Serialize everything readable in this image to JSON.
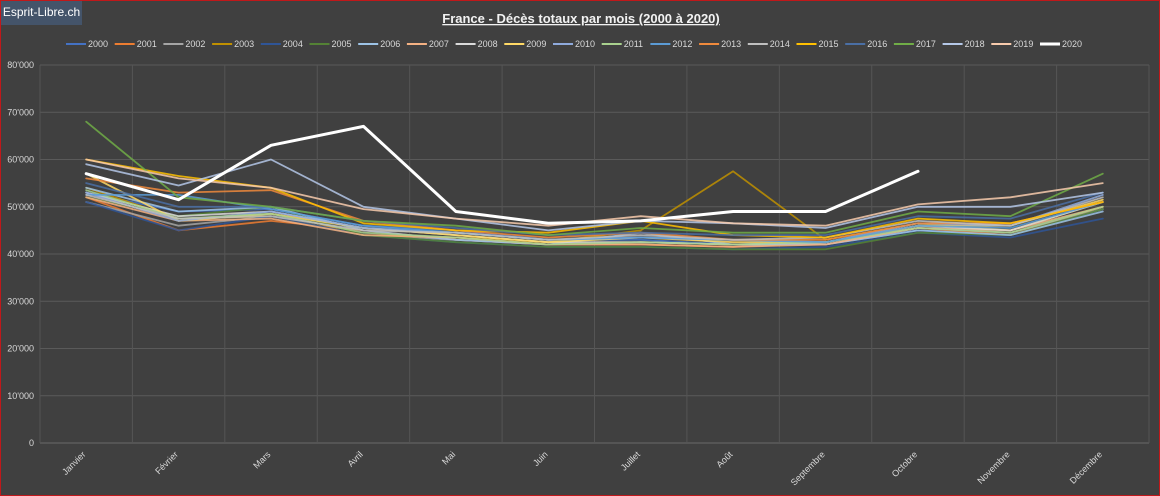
{
  "brand": {
    "label": "Esprit-Libre.ch",
    "color": "#44546a"
  },
  "chart_data": {
    "type": "line",
    "title": "France - Décès totaux par mois (2000 à 2020)",
    "xlabel": "",
    "ylabel": "",
    "ylim": [
      0,
      80000
    ],
    "yticks": [
      0,
      10000,
      20000,
      30000,
      40000,
      50000,
      60000,
      70000,
      80000
    ],
    "ytick_labels": [
      "0",
      "10'000",
      "20'000",
      "30'000",
      "40'000",
      "50'000",
      "60'000",
      "70'000",
      "80'000"
    ],
    "grid": true,
    "legend_position": "top",
    "categories": [
      "Janvier",
      "Février",
      "Mars",
      "Avril",
      "Mai",
      "Juin",
      "Juillet",
      "Août",
      "Septembre",
      "Octobre",
      "Novembre",
      "Décembre"
    ],
    "series": [
      {
        "name": "2000",
        "color": "#4472c4",
        "values": [
          53000,
          49000,
          49500,
          46000,
          45000,
          43000,
          43000,
          42000,
          42000,
          45000,
          44000,
          49500
        ]
      },
      {
        "name": "2001",
        "color": "#ed7d31",
        "values": [
          52000,
          45000,
          47000,
          45000,
          43000,
          42000,
          42000,
          41500,
          42500,
          45500,
          44000,
          50000
        ]
      },
      {
        "name": "2002",
        "color": "#a5a5a5",
        "values": [
          51000,
          46000,
          48000,
          44000,
          43000,
          42000,
          42500,
          42000,
          42000,
          45500,
          44500,
          49500
        ]
      },
      {
        "name": "2003",
        "color": "#c09000",
        "values": [
          54000,
          47500,
          48000,
          44000,
          43500,
          42500,
          45000,
          57500,
          43000,
          46500,
          45000,
          51000
        ]
      },
      {
        "name": "2004",
        "color": "#2f5597",
        "values": [
          51000,
          45000,
          48000,
          44000,
          42500,
          41500,
          41500,
          41000,
          41500,
          44500,
          43500,
          47500
        ]
      },
      {
        "name": "2005",
        "color": "#548235",
        "values": [
          52000,
          48000,
          50000,
          44000,
          42500,
          41500,
          41500,
          41000,
          41000,
          44500,
          44000,
          49500
        ]
      },
      {
        "name": "2006",
        "color": "#9dc3e6",
        "values": [
          54000,
          49000,
          50000,
          45000,
          43000,
          42000,
          44500,
          42000,
          42000,
          45000,
          44000,
          49000
        ]
      },
      {
        "name": "2007",
        "color": "#f4b183",
        "values": [
          52000,
          47000,
          47500,
          44000,
          43500,
          42000,
          42000,
          41500,
          42000,
          45500,
          45000,
          50000
        ]
      },
      {
        "name": "2008",
        "color": "#dadada",
        "values": [
          53000,
          48000,
          49000,
          45500,
          44000,
          42500,
          42500,
          42000,
          42500,
          46000,
          45000,
          51000
        ]
      },
      {
        "name": "2009",
        "color": "#ffd966",
        "values": [
          57000,
          47000,
          48500,
          45500,
          44000,
          42500,
          43500,
          42500,
          42500,
          46000,
          46000,
          51500
        ]
      },
      {
        "name": "2010",
        "color": "#8faadc",
        "values": [
          53000,
          47000,
          49000,
          45500,
          44500,
          43000,
          43500,
          43000,
          42500,
          46500,
          46000,
          52500
        ]
      },
      {
        "name": "2011",
        "color": "#a9d18e",
        "values": [
          53500,
          47500,
          48500,
          44500,
          43500,
          42000,
          42500,
          42000,
          42500,
          45500,
          44500,
          50000
        ]
      },
      {
        "name": "2012",
        "color": "#5b9bd5",
        "values": [
          52500,
          52500,
          49500,
          46000,
          44500,
          43000,
          43500,
          43000,
          42500,
          46000,
          45500,
          51000
        ]
      },
      {
        "name": "2013",
        "color": "#f08a3c",
        "values": [
          56000,
          53000,
          53500,
          47000,
          45000,
          43500,
          44500,
          43000,
          43000,
          46500,
          46500,
          51000
        ]
      },
      {
        "name": "2014",
        "color": "#bfbfbf",
        "values": [
          52500,
          47500,
          48000,
          45000,
          44500,
          43000,
          44000,
          43000,
          43500,
          47000,
          46000,
          52000
        ]
      },
      {
        "name": "2015",
        "color": "#ffc000",
        "values": [
          60000,
          56500,
          54000,
          46500,
          45000,
          44500,
          47000,
          44000,
          43500,
          47500,
          46500,
          51000
        ]
      },
      {
        "name": "2016",
        "color": "#4a6fa5",
        "values": [
          55000,
          50000,
          50000,
          47000,
          45500,
          44000,
          44500,
          44000,
          44000,
          48000,
          47500,
          53000
        ]
      },
      {
        "name": "2017",
        "color": "#70ad47",
        "values": [
          68000,
          52000,
          50000,
          47000,
          46000,
          44000,
          45500,
          44500,
          44500,
          49000,
          48000,
          57000
        ]
      },
      {
        "name": "2018",
        "color": "#b4c7e7",
        "values": [
          59000,
          54500,
          60000,
          50000,
          47500,
          45000,
          47000,
          46500,
          45500,
          50000,
          50000,
          53000
        ]
      },
      {
        "name": "2019",
        "color": "#f8cbad",
        "values": [
          60000,
          56000,
          54000,
          49500,
          47500,
          46000,
          48000,
          46500,
          46000,
          50500,
          52000,
          55000
        ]
      },
      {
        "name": "2020",
        "color": "#ffffff",
        "values": [
          57000,
          51500,
          63000,
          67000,
          49000,
          46500,
          47000,
          49000,
          49000,
          57500,
          null,
          null
        ]
      }
    ]
  }
}
